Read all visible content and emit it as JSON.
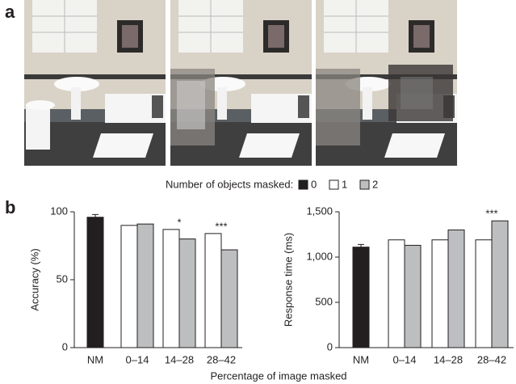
{
  "panel_labels": [
    "a",
    "b"
  ],
  "legend_title": "Number of objects masked:",
  "xlabel": "Percentage of image masked",
  "chart_data": [
    {
      "type": "bar",
      "ylabel": "Accuracy (%)",
      "categories": [
        "NM",
        "0–14",
        "14–28",
        "28–42"
      ],
      "series": [
        {
          "name": "0",
          "color": "#231f20",
          "values": [
            96,
            null,
            null,
            null
          ],
          "errors": [
            2,
            null,
            null,
            null
          ]
        },
        {
          "name": "1",
          "color": "#ffffff",
          "values": [
            null,
            90,
            87,
            84
          ]
        },
        {
          "name": "2",
          "color": "#bcbec0",
          "values": [
            null,
            91,
            80,
            72
          ]
        }
      ],
      "ylim": [
        0,
        100
      ],
      "yticks": [
        0,
        50,
        100
      ],
      "annotations": [
        {
          "text": "*",
          "category": "14–28"
        },
        {
          "text": "***",
          "category": "28–42"
        }
      ]
    },
    {
      "type": "bar",
      "ylabel": "Response time (ms)",
      "categories": [
        "NM",
        "0–14",
        "14–28",
        "28–42"
      ],
      "series": [
        {
          "name": "0",
          "color": "#231f20",
          "values": [
            1110,
            null,
            null,
            null
          ],
          "errors": [
            30,
            null,
            null,
            null
          ]
        },
        {
          "name": "1",
          "color": "#ffffff",
          "values": [
            null,
            1190,
            1190,
            1190
          ]
        },
        {
          "name": "2",
          "color": "#bcbec0",
          "values": [
            null,
            1130,
            1300,
            1400
          ]
        }
      ],
      "ylim": [
        0,
        1500
      ],
      "yticks": [
        0,
        500,
        {
          "value": 1000,
          "label": "1,000"
        },
        {
          "value": 1500,
          "label": "1,500"
        }
      ],
      "annotations": [
        {
          "text": "***",
          "category": "28–42"
        }
      ]
    }
  ]
}
